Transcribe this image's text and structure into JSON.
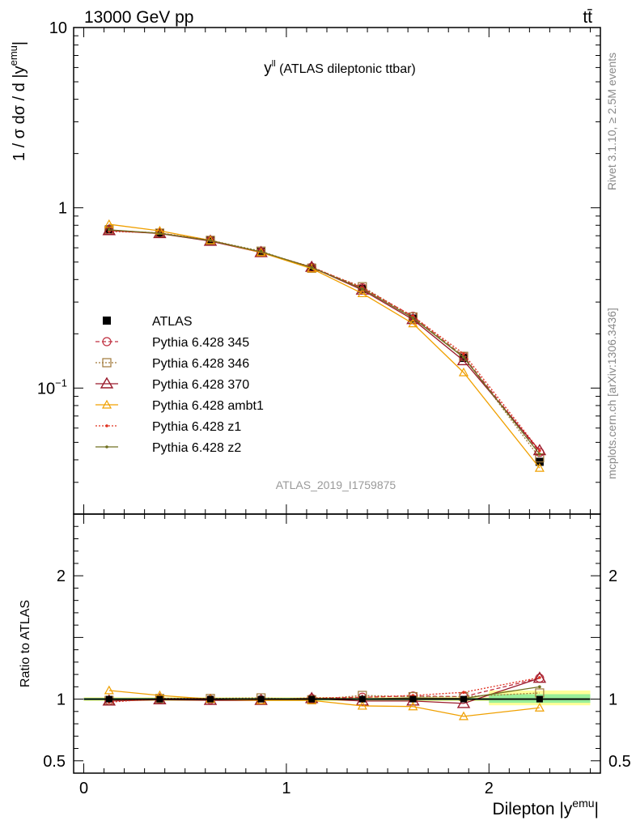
{
  "header": {
    "energy_label": "13000 GeV pp",
    "process_label": "tt̄"
  },
  "side_labels": {
    "rivet": "Rivet 3.1.10, ≥ 2.5M events",
    "mcplots": "mcplots.cern.ch [arXiv:1306.3436]"
  },
  "chart_data": [
    {
      "type": "line",
      "panel": "main",
      "title": "y^ll (ATLAS dileptonic ttbar)",
      "title_main": "y",
      "title_sup": "ll",
      "title_rest": " (ATLAS dileptonic ttbar)",
      "ylabel": "1 / σ dσ / d |y^emu|",
      "ylabel_main": "1 / σ  dσ / d |y",
      "ylabel_sup": "emu",
      "ylabel_end": "|",
      "yscale": "log",
      "ylim": [
        0.02,
        10
      ],
      "xlim": [
        -0.05,
        2.55
      ],
      "yticks": [
        {
          "v": 10,
          "label": "10"
        },
        {
          "v": 1,
          "label": "1"
        },
        {
          "v": 0.1,
          "label": "10",
          "sup": "−1"
        }
      ],
      "watermark": "ATLAS_2019_I1759875",
      "legend_position": "center-left",
      "x": [
        0.125,
        0.375,
        0.625,
        0.875,
        1.125,
        1.375,
        1.625,
        1.875,
        2.25
      ],
      "series": [
        {
          "name": "ATLAS",
          "color": "#000000",
          "marker": "filled-square",
          "style": "none",
          "values": [
            0.76,
            0.722,
            0.658,
            0.57,
            0.465,
            0.355,
            0.243,
            0.147,
            0.039
          ]
        },
        {
          "name": "Pythia 6.428 345",
          "color": "#c03040",
          "marker": "open-circle",
          "style": "dashed",
          "values": [
            0.75,
            0.722,
            0.655,
            0.568,
            0.468,
            0.36,
            0.25,
            0.15,
            0.044
          ]
        },
        {
          "name": "Pythia 6.428 346",
          "color": "#a07838",
          "marker": "open-square",
          "style": "dotted",
          "values": [
            0.752,
            0.724,
            0.66,
            0.575,
            0.462,
            0.365,
            0.248,
            0.15,
            0.041
          ]
        },
        {
          "name": "Pythia 6.428 370",
          "color": "#9a1b2c",
          "marker": "open-triangle",
          "style": "solid",
          "values": [
            0.748,
            0.72,
            0.653,
            0.565,
            0.468,
            0.35,
            0.24,
            0.142,
            0.045
          ]
        },
        {
          "name": "Pythia 6.428 ambt1",
          "color": "#f0a000",
          "marker": "open-triangle-small",
          "style": "solid",
          "values": [
            0.81,
            0.745,
            0.66,
            0.565,
            0.46,
            0.335,
            0.228,
            0.122,
            0.036
          ]
        },
        {
          "name": "Pythia 6.428 z1",
          "color": "#e0301e",
          "marker": "dot",
          "style": "dotted",
          "values": [
            0.74,
            0.725,
            0.66,
            0.568,
            0.47,
            0.36,
            0.25,
            0.155,
            0.045
          ]
        },
        {
          "name": "Pythia 6.428 z2",
          "color": "#707020",
          "marker": "dot",
          "style": "solid",
          "values": [
            0.755,
            0.722,
            0.658,
            0.57,
            0.467,
            0.355,
            0.245,
            0.148,
            0.043
          ]
        }
      ]
    },
    {
      "type": "line",
      "panel": "ratio",
      "ylabel": "Ratio to ATLAS",
      "ylim": [
        0.4,
        2.5
      ],
      "xlim": [
        -0.05,
        2.55
      ],
      "xlabel": "Dilepton |y^emu|",
      "xlabel_main": "Dilepton |y",
      "xlabel_sup": "emu",
      "xlabel_end": "|",
      "xticks": [
        {
          "v": 0,
          "label": "0"
        },
        {
          "v": 1,
          "label": "1"
        },
        {
          "v": 2,
          "label": "2"
        }
      ],
      "yticks": [
        {
          "v": 2,
          "label": "2"
        },
        {
          "v": 1,
          "label": "1"
        },
        {
          "v": 0.5,
          "label": "0.5"
        }
      ],
      "bands": [
        {
          "x0": 0.0,
          "x1": 2.0,
          "lo": 0.985,
          "hi": 1.015,
          "color": "#ffff99",
          "label": "total"
        },
        {
          "x0": 2.0,
          "x1": 2.5,
          "lo": 0.95,
          "hi": 1.07,
          "color": "#ffff99",
          "label": "total"
        },
        {
          "x0": 0.0,
          "x1": 2.0,
          "lo": 0.99,
          "hi": 1.01,
          "color": "#99ee99",
          "label": "stat"
        },
        {
          "x0": 2.0,
          "x1": 2.5,
          "lo": 0.97,
          "hi": 1.04,
          "color": "#99ee99",
          "label": "stat"
        }
      ],
      "x": [
        0.125,
        0.375,
        0.625,
        0.875,
        1.125,
        1.375,
        1.625,
        1.875,
        2.25
      ],
      "series": [
        {
          "name": "Pythia 6.428 345",
          "values": [
            0.99,
            1.0,
            0.995,
            0.995,
            1.005,
            1.015,
            1.025,
            1.02,
            1.17
          ]
        },
        {
          "name": "Pythia 6.428 346",
          "values": [
            0.99,
            1.005,
            1.005,
            1.01,
            0.995,
            1.03,
            1.02,
            1.02,
            1.05
          ]
        },
        {
          "name": "Pythia 6.428 370",
          "values": [
            0.985,
            0.995,
            0.99,
            0.99,
            1.005,
            0.985,
            0.985,
            0.965,
            1.17
          ]
        },
        {
          "name": "Pythia 6.428 ambt1",
          "values": [
            1.07,
            1.03,
            1.0,
            0.99,
            0.99,
            0.945,
            0.94,
            0.86,
            0.93
          ]
        },
        {
          "name": "Pythia 6.428 z1",
          "values": [
            0.975,
            1.005,
            1.005,
            0.995,
            1.01,
            1.015,
            1.03,
            1.055,
            1.175
          ]
        },
        {
          "name": "Pythia 6.428 z2",
          "values": [
            0.995,
            1.0,
            1.0,
            1.0,
            1.005,
            1.0,
            1.01,
            1.005,
            1.1
          ]
        }
      ],
      "reference_value": 1
    }
  ]
}
